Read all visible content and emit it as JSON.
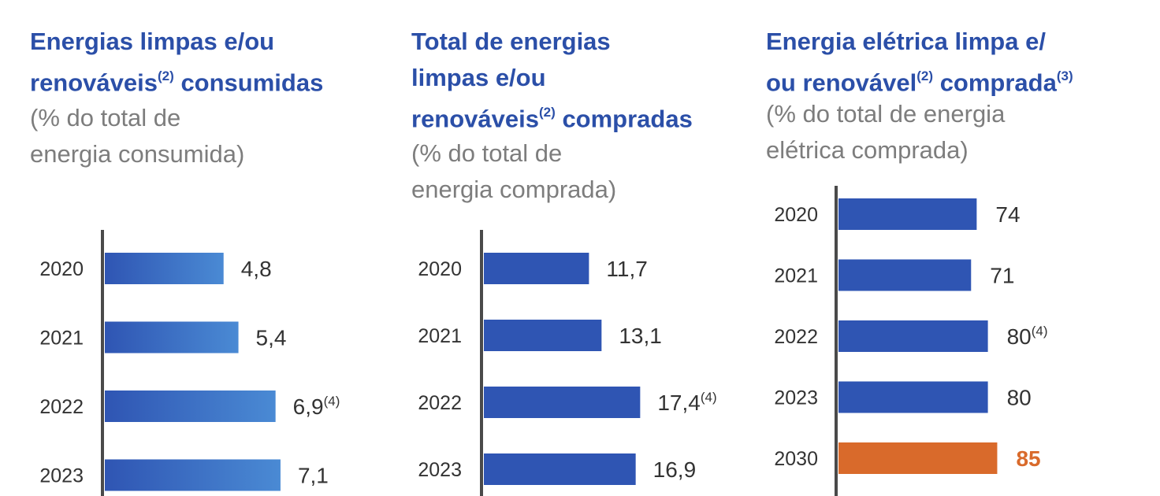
{
  "colors": {
    "title": "#2b4fa8",
    "subtitle": "#7d7d7d",
    "axis": "#4a4a4a",
    "bar": "#2f55b3",
    "bar_gradient_end": "#4a8ad4",
    "highlight": "#d96a2b",
    "text": "#333333"
  },
  "panels": [
    {
      "title_parts": [
        "Energias limpas e/ou",
        "renováveis",
        "(2)",
        " consumidas"
      ],
      "subtitle_lines": [
        "(% do total de",
        "energia consumida)"
      ]
    },
    {
      "title_parts": [
        "Total de energias",
        "limpas e/ou",
        "renováveis",
        "(2)",
        " compradas"
      ],
      "subtitle_lines": [
        "(% do total de",
        "energia comprada)"
      ]
    },
    {
      "title_parts": [
        "Energia elétrica limpa e/",
        "ou renovável",
        "(2)",
        " comprada",
        "(3)"
      ],
      "subtitle_lines": [
        "(% do total de energia",
        "elétrica comprada)"
      ]
    }
  ],
  "chart_data": [
    {
      "type": "bar",
      "orientation": "horizontal",
      "categories": [
        "2020",
        "2021",
        "2022",
        "2023"
      ],
      "values": [
        4.8,
        5.4,
        6.9,
        7.1
      ],
      "value_labels": [
        "4,8",
        "5,4",
        "6,9",
        "7,1"
      ],
      "value_footnotes": [
        "",
        "",
        "(4)",
        ""
      ],
      "title": "Energias limpas e/ou renováveis(2) consumidas",
      "subtitle": "(% do total de energia consumida)",
      "bar_style": "gradient"
    },
    {
      "type": "bar",
      "orientation": "horizontal",
      "categories": [
        "2020",
        "2021",
        "2022",
        "2023"
      ],
      "values": [
        11.7,
        13.1,
        17.4,
        16.9
      ],
      "value_labels": [
        "11,7",
        "13,1",
        "17,4",
        "16,9"
      ],
      "value_footnotes": [
        "",
        "",
        "(4)",
        ""
      ],
      "title": "Total de energias limpas e/ou renováveis(2) compradas",
      "subtitle": "(% do total de energia comprada)",
      "bar_style": "solid"
    },
    {
      "type": "bar",
      "orientation": "horizontal",
      "categories": [
        "2020",
        "2021",
        "2022",
        "2023",
        "2030"
      ],
      "values": [
        74,
        71,
        80,
        80,
        85
      ],
      "value_labels": [
        "74",
        "71",
        "80",
        "80",
        "85"
      ],
      "value_footnotes": [
        "",
        "",
        "(4)",
        "",
        ""
      ],
      "highlighted": [
        false,
        false,
        false,
        false,
        true
      ],
      "title": "Energia elétrica limpa e/ou renovável(2) comprada(3)",
      "subtitle": "(% do total de energia elétrica comprada)",
      "bar_style": "solid"
    }
  ]
}
